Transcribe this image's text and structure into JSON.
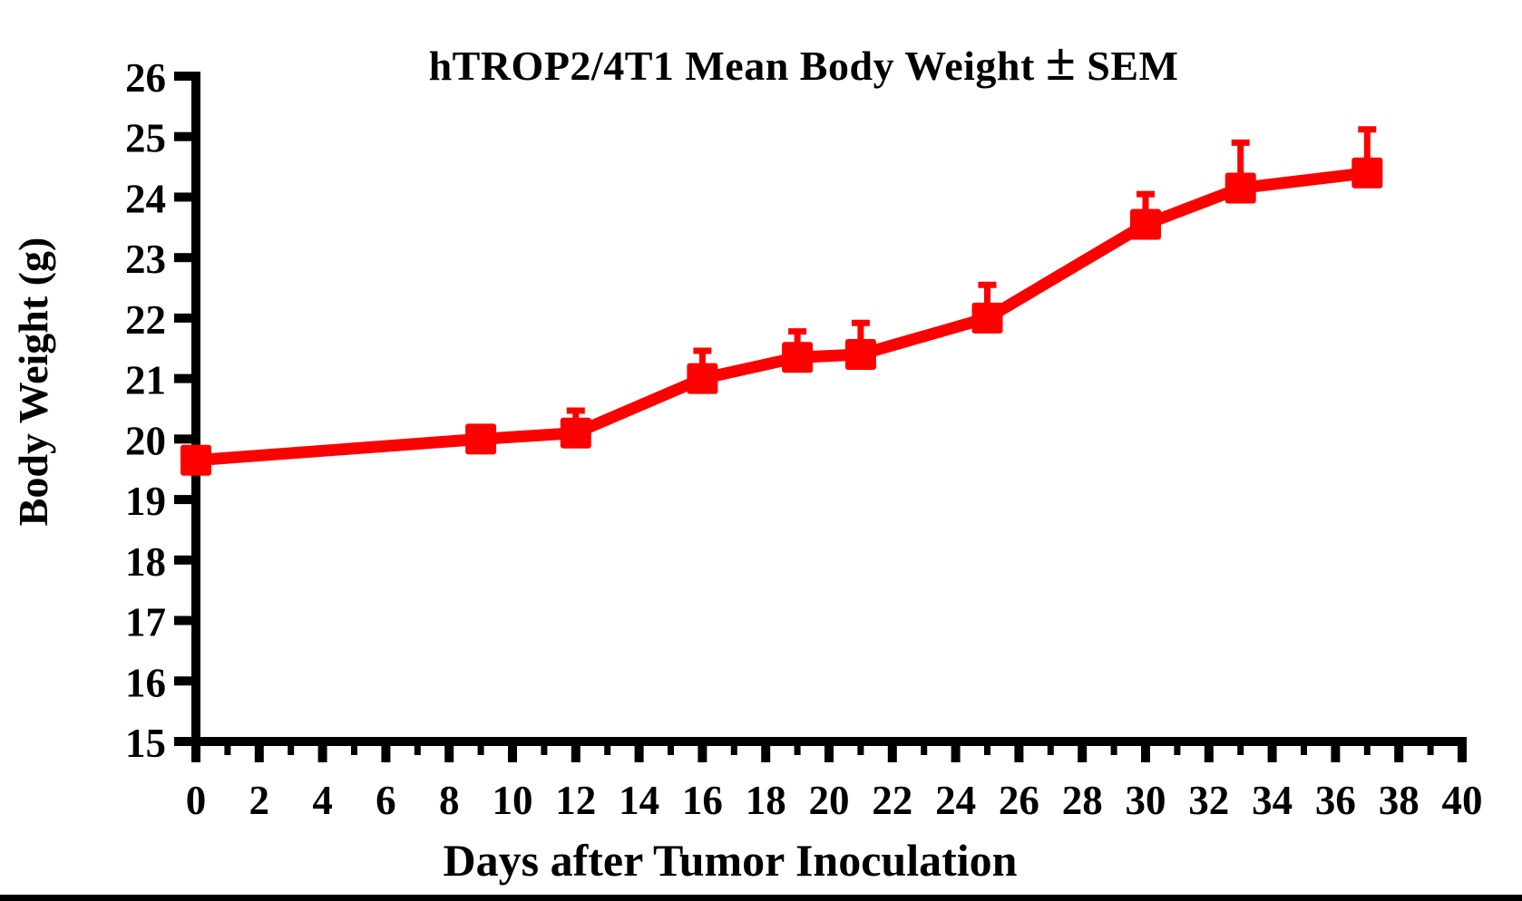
{
  "figure": {
    "background_color": "#FFFFFF",
    "bottom_bar_color": "#000000"
  },
  "chart_data": {
    "type": "line",
    "title": "hTROP2/4T1 Mean Body Weight ± SEM",
    "xlabel": "Days after Tumor Inoculation",
    "ylabel": "Body Weight (g)",
    "x": [
      0,
      9,
      12,
      16,
      19,
      21,
      25,
      30,
      33,
      37
    ],
    "series": [
      {
        "name": "hTROP2/4T1 mean body weight",
        "values": [
          19.65,
          20.0,
          20.1,
          21.0,
          21.35,
          21.4,
          22.0,
          23.55,
          24.15,
          24.4
        ],
        "sem_upper": [
          null,
          null,
          0.37,
          0.46,
          0.43,
          0.52,
          0.55,
          0.5,
          0.75,
          0.72
        ],
        "color": "#FF0000",
        "marker": "square"
      }
    ],
    "error_bars": "upper SEM whiskers only",
    "xlim": [
      0,
      40
    ],
    "ylim": [
      15,
      26
    ],
    "x_tick_labels": [
      0,
      2,
      4,
      6,
      8,
      10,
      12,
      14,
      16,
      18,
      20,
      22,
      24,
      26,
      28,
      30,
      32,
      34,
      36,
      38,
      40
    ],
    "x_minor_tick_step": 1,
    "y_tick_labels": [
      15,
      16,
      17,
      18,
      19,
      20,
      21,
      22,
      23,
      24,
      25,
      26
    ],
    "grid": false,
    "legend": false,
    "axis_color": "#000000",
    "background": "#FFFFFF"
  }
}
